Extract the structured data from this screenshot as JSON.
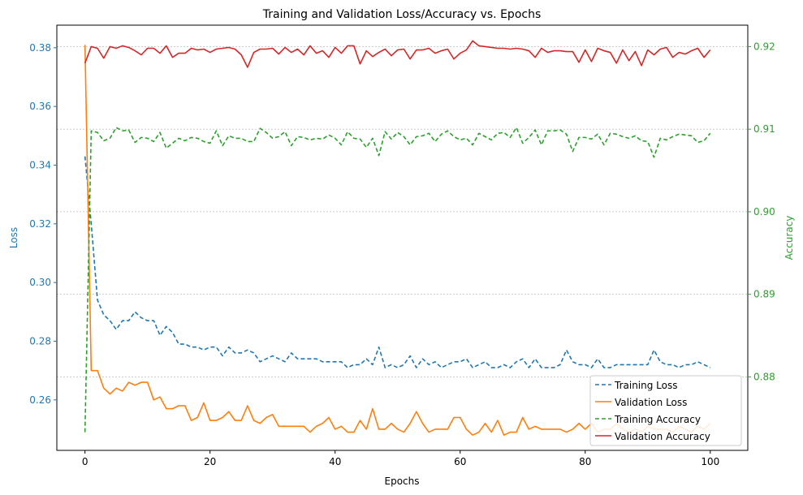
{
  "chart_data": {
    "type": "line",
    "title": "Training and Validation Loss/Accuracy vs. Epochs",
    "xlabel": "Epochs",
    "ylabel_left": "Loss",
    "ylabel_right": "Accuracy",
    "xlim": [
      -4.5,
      106
    ],
    "ylim_left": [
      0.2428,
      0.3877
    ],
    "ylim_right": [
      0.8711,
      0.9226
    ],
    "xticks": [
      0,
      20,
      40,
      60,
      80,
      100
    ],
    "yticks_left": [
      0.26,
      0.28,
      0.3,
      0.32,
      0.34,
      0.36,
      0.38
    ],
    "yticks_left_labels": [
      "0.26",
      "0.28",
      "0.30",
      "0.32",
      "0.34",
      "0.36",
      "0.38"
    ],
    "yticks_right": [
      0.88,
      0.89,
      0.9,
      0.91,
      0.92
    ],
    "yticks_right_labels": [
      "0.88",
      "0.89",
      "0.90",
      "0.91",
      "0.92"
    ],
    "grid": "horizontal, right axis",
    "legend_position": "lower-right",
    "colors": {
      "left_axis": "#1f77b4",
      "right_axis": "#2ca02c"
    },
    "series": [
      {
        "name": "Training Loss",
        "axis": "left",
        "color": "#1f77b4",
        "dash": "dashed",
        "x": [
          0,
          1,
          2,
          3,
          4,
          5,
          6,
          7,
          8,
          9,
          10,
          11,
          12,
          13,
          14,
          15,
          16,
          17,
          18,
          19,
          20,
          21,
          22,
          23,
          24,
          25,
          26,
          27,
          28,
          29,
          30,
          31,
          32,
          33,
          34,
          35,
          36,
          37,
          38,
          39,
          40,
          41,
          42,
          43,
          44,
          45,
          46,
          47,
          48,
          49,
          50,
          51,
          52,
          53,
          54,
          55,
          56,
          57,
          58,
          59,
          60,
          61,
          62,
          63,
          64,
          65,
          66,
          67,
          68,
          69,
          70,
          71,
          72,
          73,
          74,
          75,
          76,
          77,
          78,
          79,
          80,
          81,
          82,
          83,
          84,
          85,
          86,
          87,
          88,
          89,
          90,
          91,
          92,
          93,
          94,
          95,
          96,
          97,
          98,
          99,
          100
        ],
        "values": [
          0.343,
          0.32,
          0.294,
          0.289,
          0.287,
          0.284,
          0.287,
          0.287,
          0.29,
          0.288,
          0.287,
          0.287,
          0.282,
          0.285,
          0.283,
          0.279,
          0.279,
          0.278,
          0.278,
          0.277,
          0.278,
          0.278,
          0.275,
          0.278,
          0.276,
          0.276,
          0.277,
          0.276,
          0.273,
          0.274,
          0.275,
          0.274,
          0.273,
          0.276,
          0.274,
          0.274,
          0.274,
          0.274,
          0.273,
          0.273,
          0.273,
          0.273,
          0.271,
          0.272,
          0.272,
          0.274,
          0.272,
          0.278,
          0.271,
          0.272,
          0.271,
          0.272,
          0.275,
          0.271,
          0.274,
          0.272,
          0.273,
          0.271,
          0.272,
          0.273,
          0.273,
          0.274,
          0.271,
          0.272,
          0.273,
          0.271,
          0.271,
          0.272,
          0.271,
          0.273,
          0.274,
          0.271,
          0.274,
          0.271,
          0.271,
          0.271,
          0.272,
          0.277,
          0.273,
          0.272,
          0.272,
          0.271,
          0.274,
          0.271,
          0.271,
          0.272,
          0.272,
          0.272,
          0.272,
          0.272,
          0.272,
          0.277,
          0.273,
          0.272,
          0.272,
          0.271,
          0.272,
          0.272,
          0.273,
          0.272,
          0.271
        ]
      },
      {
        "name": "Validation Loss",
        "axis": "left",
        "color": "#ff7f0e",
        "dash": "solid",
        "x": [
          0,
          1,
          2,
          3,
          4,
          5,
          6,
          7,
          8,
          9,
          10,
          11,
          12,
          13,
          14,
          15,
          16,
          17,
          18,
          19,
          20,
          21,
          22,
          23,
          24,
          25,
          26,
          27,
          28,
          29,
          30,
          31,
          32,
          33,
          34,
          35,
          36,
          37,
          38,
          39,
          40,
          41,
          42,
          43,
          44,
          45,
          46,
          47,
          48,
          49,
          50,
          51,
          52,
          53,
          54,
          55,
          56,
          57,
          58,
          59,
          60,
          61,
          62,
          63,
          64,
          65,
          66,
          67,
          68,
          69,
          70,
          71,
          72,
          73,
          74,
          75,
          76,
          77,
          78,
          79,
          80,
          81,
          82,
          83,
          84,
          85,
          86,
          87,
          88,
          89,
          90,
          91,
          92,
          93,
          94,
          95,
          96,
          97,
          98,
          99,
          100
        ],
        "values": [
          0.381,
          0.27,
          0.27,
          0.264,
          0.262,
          0.264,
          0.263,
          0.266,
          0.265,
          0.266,
          0.266,
          0.26,
          0.261,
          0.257,
          0.257,
          0.258,
          0.258,
          0.253,
          0.254,
          0.259,
          0.253,
          0.253,
          0.254,
          0.256,
          0.253,
          0.253,
          0.258,
          0.253,
          0.252,
          0.254,
          0.255,
          0.251,
          0.251,
          0.251,
          0.251,
          0.251,
          0.249,
          0.251,
          0.252,
          0.254,
          0.25,
          0.251,
          0.249,
          0.249,
          0.253,
          0.25,
          0.257,
          0.25,
          0.25,
          0.252,
          0.25,
          0.249,
          0.252,
          0.256,
          0.252,
          0.249,
          0.25,
          0.25,
          0.25,
          0.254,
          0.254,
          0.25,
          0.248,
          0.249,
          0.252,
          0.249,
          0.253,
          0.248,
          0.249,
          0.249,
          0.254,
          0.25,
          0.251,
          0.25,
          0.25,
          0.25,
          0.25,
          0.249,
          0.25,
          0.252,
          0.25,
          0.252,
          0.249,
          0.25,
          0.25,
          0.252,
          0.25,
          0.249,
          0.25,
          0.249,
          0.251,
          0.25,
          0.25,
          0.25,
          0.249,
          0.251,
          0.25,
          0.249,
          0.251,
          0.25,
          0.252
        ]
      },
      {
        "name": "Training Accuracy",
        "axis": "right",
        "color": "#2ca02c",
        "dash": "dashed",
        "x": [
          0,
          1,
          2,
          3,
          4,
          5,
          6,
          7,
          8,
          9,
          10,
          11,
          12,
          13,
          14,
          15,
          16,
          17,
          18,
          19,
          20,
          21,
          22,
          23,
          24,
          25,
          26,
          27,
          28,
          29,
          30,
          31,
          32,
          33,
          34,
          35,
          36,
          37,
          38,
          39,
          40,
          41,
          42,
          43,
          44,
          45,
          46,
          47,
          48,
          49,
          50,
          51,
          52,
          53,
          54,
          55,
          56,
          57,
          58,
          59,
          60,
          61,
          62,
          63,
          64,
          65,
          66,
          67,
          68,
          69,
          70,
          71,
          72,
          73,
          74,
          75,
          76,
          77,
          78,
          79,
          80,
          81,
          82,
          83,
          84,
          85,
          86,
          87,
          88,
          89,
          90,
          91,
          92,
          93,
          94,
          95,
          96,
          97,
          98,
          99,
          100
        ],
        "values": [
          0.8733,
          0.9098,
          0.9096,
          0.9086,
          0.9089,
          0.9102,
          0.9098,
          0.9099,
          0.9084,
          0.909,
          0.9089,
          0.9085,
          0.9096,
          0.9077,
          0.9083,
          0.9089,
          0.9086,
          0.909,
          0.9089,
          0.9085,
          0.9083,
          0.9098,
          0.908,
          0.9092,
          0.9089,
          0.9089,
          0.9085,
          0.9085,
          0.9101,
          0.9096,
          0.9089,
          0.9091,
          0.9097,
          0.908,
          0.9091,
          0.909,
          0.9087,
          0.9089,
          0.9088,
          0.9093,
          0.9089,
          0.9081,
          0.9097,
          0.9089,
          0.9088,
          0.9078,
          0.9089,
          0.9068,
          0.9097,
          0.9088,
          0.9096,
          0.9091,
          0.9081,
          0.9091,
          0.9092,
          0.9095,
          0.9085,
          0.9094,
          0.9098,
          0.9091,
          0.9087,
          0.9089,
          0.9081,
          0.9095,
          0.9091,
          0.9087,
          0.9095,
          0.9096,
          0.909,
          0.9102,
          0.9083,
          0.909,
          0.9099,
          0.9081,
          0.9098,
          0.9098,
          0.9099,
          0.9094,
          0.9073,
          0.909,
          0.909,
          0.9088,
          0.9094,
          0.9081,
          0.9095,
          0.9094,
          0.9091,
          0.9089,
          0.9092,
          0.9086,
          0.9085,
          0.9066,
          0.9089,
          0.9087,
          0.9091,
          0.9094,
          0.9093,
          0.9092,
          0.9084,
          0.9086,
          0.9095
        ]
      },
      {
        "name": "Validation Accuracy",
        "axis": "right",
        "color": "#d62728",
        "dash": "solid",
        "x": [
          0,
          1,
          2,
          3,
          4,
          5,
          6,
          7,
          8,
          9,
          10,
          11,
          12,
          13,
          14,
          15,
          16,
          17,
          18,
          19,
          20,
          21,
          22,
          23,
          24,
          25,
          26,
          27,
          28,
          29,
          30,
          31,
          32,
          33,
          34,
          35,
          36,
          37,
          38,
          39,
          40,
          41,
          42,
          43,
          44,
          45,
          46,
          47,
          48,
          49,
          50,
          51,
          52,
          53,
          54,
          55,
          56,
          57,
          58,
          59,
          60,
          61,
          62,
          63,
          64,
          65,
          66,
          67,
          68,
          69,
          70,
          71,
          72,
          73,
          74,
          75,
          76,
          77,
          78,
          79,
          80,
          81,
          82,
          83,
          84,
          85,
          86,
          87,
          88,
          89,
          90,
          91,
          92,
          93,
          94,
          95,
          96,
          97,
          98,
          99,
          100
        ],
        "values": [
          0.918,
          0.92,
          0.9198,
          0.9186,
          0.92,
          0.9198,
          0.9201,
          0.9199,
          0.9195,
          0.919,
          0.9198,
          0.9198,
          0.9192,
          0.9201,
          0.9187,
          0.9192,
          0.9192,
          0.9198,
          0.9196,
          0.9197,
          0.9193,
          0.9197,
          0.9198,
          0.9199,
          0.9197,
          0.919,
          0.9175,
          0.9193,
          0.9197,
          0.9197,
          0.9198,
          0.9191,
          0.9199,
          0.9193,
          0.9197,
          0.919,
          0.9201,
          0.9192,
          0.9195,
          0.9187,
          0.9199,
          0.9192,
          0.9201,
          0.9201,
          0.9179,
          0.9195,
          0.9188,
          0.9193,
          0.9197,
          0.9189,
          0.9196,
          0.9197,
          0.9185,
          0.9196,
          0.9196,
          0.9198,
          0.9192,
          0.9195,
          0.9197,
          0.9185,
          0.9192,
          0.9196,
          0.9207,
          0.9201,
          0.92,
          0.9199,
          0.9198,
          0.9198,
          0.9197,
          0.9198,
          0.9197,
          0.9195,
          0.9187,
          0.9198,
          0.9193,
          0.9195,
          0.9195,
          0.9194,
          0.9194,
          0.9181,
          0.9196,
          0.9182,
          0.9198,
          0.9195,
          0.9193,
          0.918,
          0.9196,
          0.9183,
          0.9194,
          0.9177,
          0.9196,
          0.919,
          0.9197,
          0.9199,
          0.9187,
          0.9193,
          0.9191,
          0.9195,
          0.9198,
          0.9187,
          0.9196
        ]
      }
    ]
  }
}
